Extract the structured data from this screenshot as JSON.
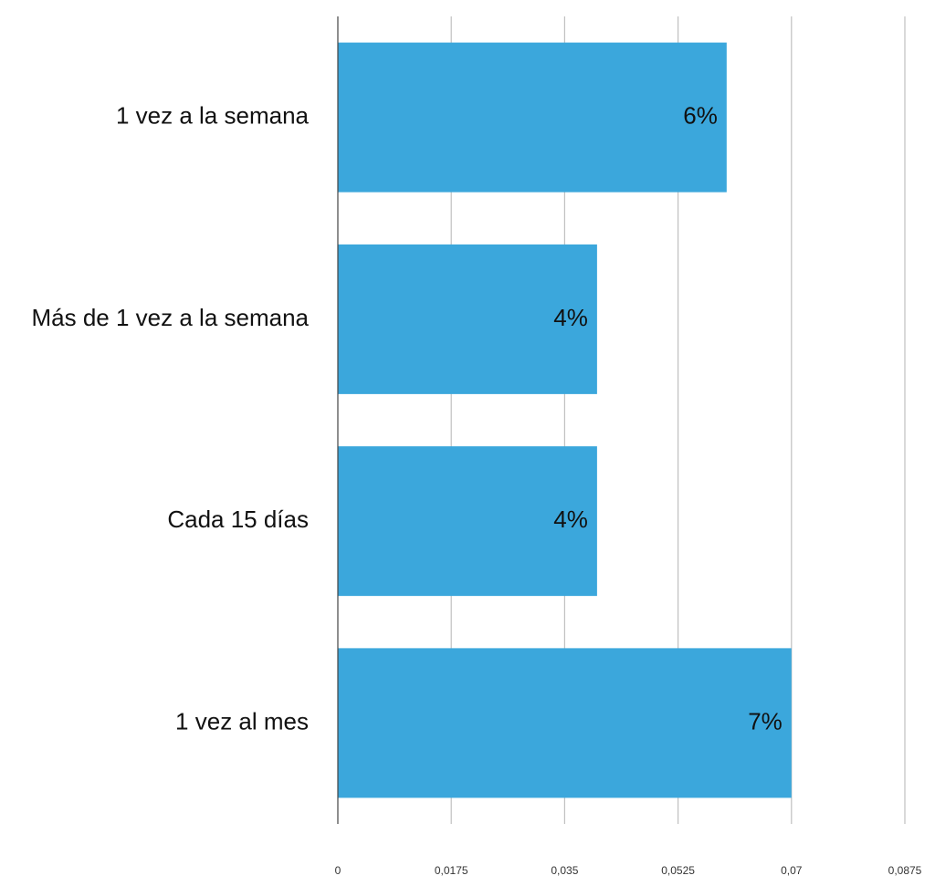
{
  "chart_data": {
    "type": "hbar",
    "categories": [
      "1 vez a la semana",
      "Más de 1 vez a la semana",
      "Cada 15 días",
      "1 vez al mes"
    ],
    "values": [
      0.06,
      0.04,
      0.04,
      0.07
    ],
    "value_labels": [
      "6%",
      "4%",
      "4%",
      "7%"
    ],
    "color": "#3ba7dc",
    "xlim": [
      0,
      0.0875
    ],
    "xticks": [
      0,
      {
        "value": 0.0175,
        "label": "0,0175"
      },
      {
        "value": 0.035,
        "label": "0,035"
      },
      {
        "value": 0.0525,
        "label": "0,0525"
      },
      {
        "value": 0.07,
        "label": "0,07"
      },
      {
        "value": 0.0875,
        "label": "0,0875"
      }
    ],
    "grid": true
  }
}
